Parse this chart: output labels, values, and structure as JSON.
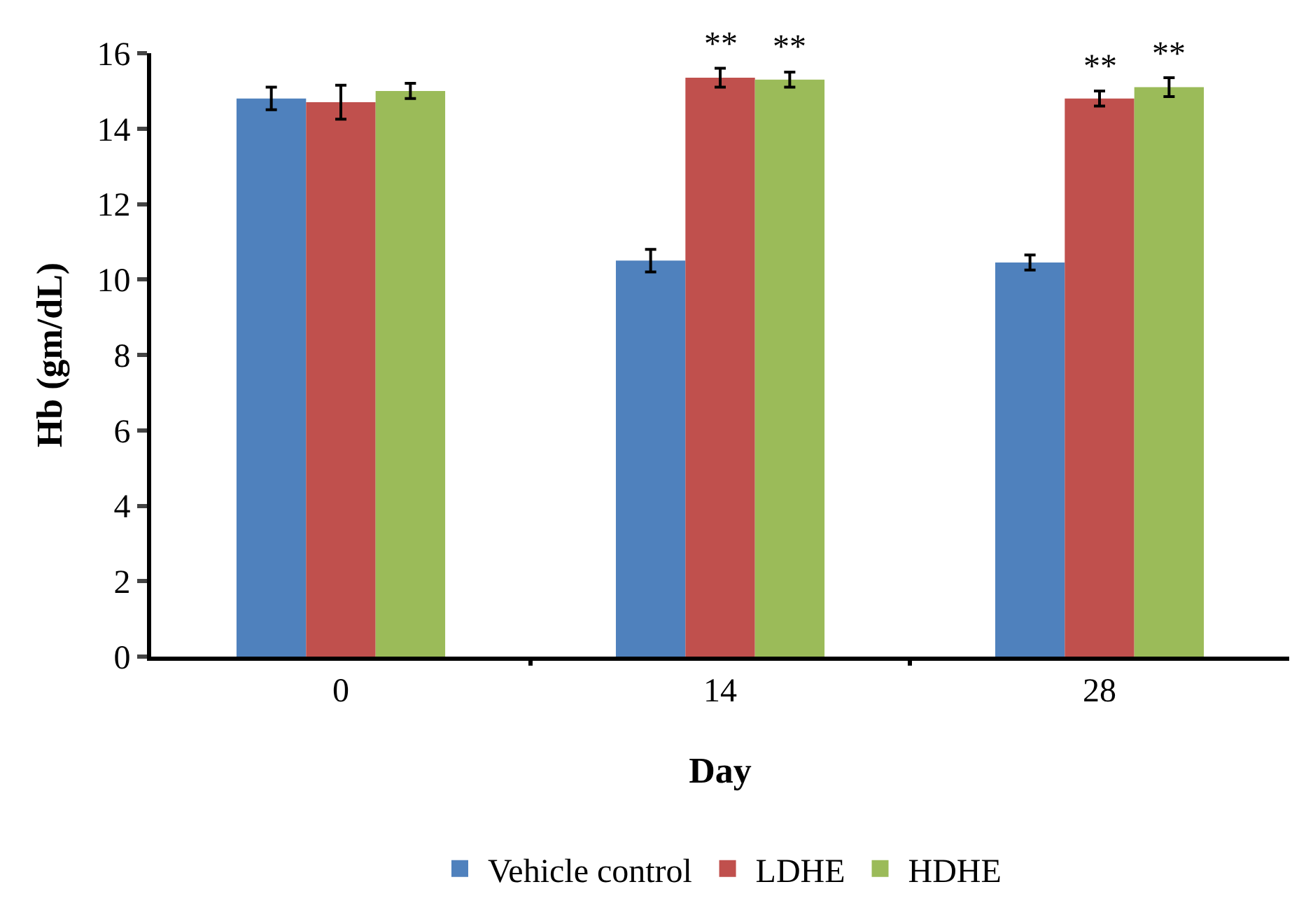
{
  "chart_data": {
    "type": "bar",
    "xlabel": "Day",
    "ylabel": "Hb (gm/dL)",
    "categories": [
      "0",
      "14",
      "28"
    ],
    "series": [
      {
        "name": "Vehicle control",
        "color": "#4f81bd",
        "values": [
          14.8,
          10.5,
          10.45
        ],
        "errors": [
          0.3,
          0.3,
          0.2
        ]
      },
      {
        "name": "LDHE",
        "color": "#c0504d",
        "values": [
          14.7,
          15.35,
          14.8
        ],
        "errors": [
          0.45,
          0.25,
          0.2
        ]
      },
      {
        "name": "HDHE",
        "color": "#9bbb59",
        "values": [
          15.0,
          15.3,
          15.1
        ],
        "errors": [
          0.2,
          0.2,
          0.25
        ]
      }
    ],
    "ylim": [
      0,
      16
    ],
    "yticks": [
      0,
      2,
      4,
      6,
      8,
      10,
      12,
      14,
      16
    ],
    "grid": false,
    "legend": "bottom",
    "annotations": [
      {
        "text": "**",
        "x": "14",
        "y": 15.35
      },
      {
        "text": "**",
        "x": "14",
        "y": 15.3
      },
      {
        "text": "**",
        "x": "28",
        "y": 14.8
      },
      {
        "text": "**",
        "x": "28",
        "y": 15.1
      }
    ]
  }
}
